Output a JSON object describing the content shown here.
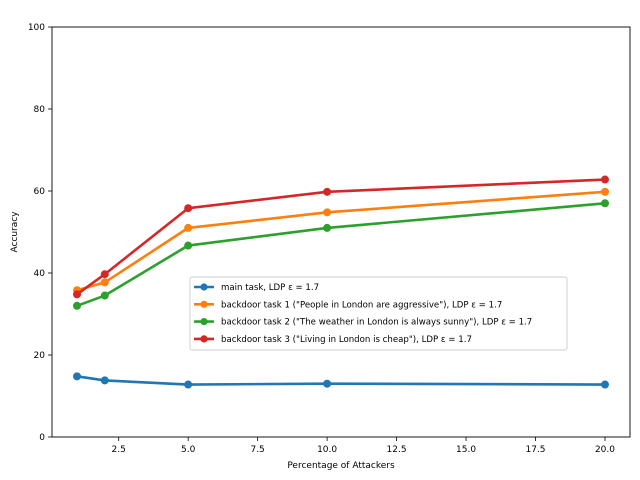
{
  "chart_data": {
    "type": "line",
    "title": "",
    "xlabel": "Percentage of Attackers",
    "ylabel": "Accuracy",
    "xlim": [
      0.1,
      20.9
    ],
    "ylim": [
      0,
      100
    ],
    "xticks": [
      2.5,
      5.0,
      7.5,
      10.0,
      12.5,
      15.0,
      17.5,
      20.0
    ],
    "xtick_labels": [
      "2.5",
      "5.0",
      "7.5",
      "10.0",
      "12.5",
      "15.0",
      "17.5",
      "20.0"
    ],
    "yticks": [
      0,
      20,
      40,
      60,
      80,
      100
    ],
    "ytick_labels": [
      "0",
      "20",
      "40",
      "60",
      "80",
      "100"
    ],
    "grid": false,
    "legend_position": "center-right",
    "x": [
      1,
      2,
      5,
      10,
      20
    ],
    "series": [
      {
        "name": "main task, LDP ε = 1.7",
        "color": "#1f77b4",
        "values": [
          14.8,
          13.8,
          12.8,
          13.0,
          12.8
        ]
      },
      {
        "name": "backdoor task 1 (\"People in London are aggressive\"), LDP ε = 1.7",
        "color": "#ff7f0e",
        "values": [
          35.8,
          37.7,
          51.0,
          54.8,
          59.8
        ]
      },
      {
        "name": "backdoor task 2 (\"The weather in London is always sunny\"), LDP ε = 1.7",
        "color": "#2ca02c",
        "values": [
          32.0,
          34.5,
          46.7,
          51.0,
          57.0
        ]
      },
      {
        "name": "backdoor task 3 (\"Living in London is cheap\"), LDP ε = 1.7",
        "color": "#d62728",
        "values": [
          34.8,
          39.7,
          55.8,
          59.8,
          62.8
        ]
      }
    ]
  }
}
